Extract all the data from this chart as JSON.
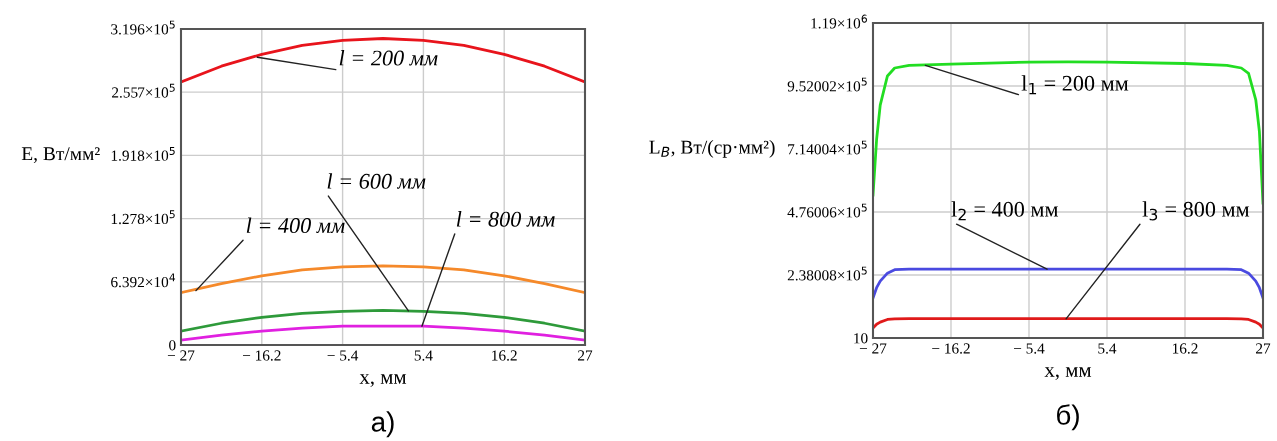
{
  "chart_data": [
    {
      "type": "line",
      "xlabel": "x, мм",
      "ylabel": "E, Вт/мм²",
      "grid": true,
      "x": [
        -27,
        -21.6,
        -16.2,
        -10.8,
        -5.4,
        0,
        5.4,
        10.8,
        16.2,
        21.6,
        27
      ],
      "xlim": [
        -27,
        27
      ],
      "xticks": [
        {
          "value": -27,
          "label": "− 27"
        },
        {
          "value": -16.2,
          "label": "− 16.2"
        },
        {
          "value": -5.4,
          "label": "− 5.4"
        },
        5.4,
        16.2,
        27
      ],
      "ylim": [
        0,
        319600
      ],
      "yticks": [
        0,
        {
          "value": 63920,
          "label": "6.392×10$^{4}$"
        },
        {
          "value": 127800,
          "label": "1.278×10$^{5}$"
        },
        {
          "value": 191800,
          "label": "1.918×10$^{5}$"
        },
        {
          "value": 255700,
          "label": "2.557×10$^{5}$"
        },
        {
          "value": 319600,
          "label": "3.196×10$^{5}$"
        }
      ],
      "series": [
        {
          "color": "#e8141c",
          "values": [
            266000,
            282000,
            294000,
            303000,
            308000,
            310000,
            308000,
            303000,
            294000,
            282000,
            266000
          ]
        },
        {
          "color": "#f5892a",
          "values": [
            53000,
            62000,
            70000,
            76000,
            79000,
            80000,
            79000,
            76000,
            70000,
            62000,
            53000
          ]
        },
        {
          "color": "#2e9a3a",
          "values": [
            14000,
            22000,
            28000,
            32000,
            34000,
            35000,
            34000,
            32000,
            28000,
            22000,
            14000
          ]
        },
        {
          "color": "#e020e0",
          "values": [
            5000,
            10000,
            14000,
            17000,
            19000,
            19000,
            19000,
            17000,
            14000,
            10000,
            5000
          ]
        }
      ],
      "annotations": [
        {
          "text": "l = 200 мм",
          "x": -16.8,
          "y": 291000
        },
        {
          "text": "l = 400 мм",
          "x": -25,
          "y": 55000
        },
        {
          "text": "l = 600 мм",
          "x": 3.4,
          "y": 34500
        },
        {
          "text": "l = 800 мм",
          "x": 5.2,
          "y": 19000
        },
        "а)"
      ]
    },
    {
      "type": "line",
      "xlabel": "x, мм",
      "ylabel": "L$_{B}$, Вт/(ср·мм²)",
      "grid": true,
      "x": [
        -27,
        -26.5,
        -26,
        -25,
        -24,
        -22,
        -16.2,
        -5.4,
        0,
        5.4,
        16.2,
        22,
        24,
        25,
        26,
        26.5,
        27
      ],
      "xlim": [
        -27,
        27
      ],
      "xticks": [
        {
          "value": -27,
          "label": "− 27"
        },
        {
          "value": -16.2,
          "label": "− 16.2"
        },
        {
          "value": -5.4,
          "label": "− 5.4"
        },
        5.4,
        16.2,
        27
      ],
      "ylim": [
        10,
        1190000
      ],
      "yticks": [
        10,
        {
          "value": 238008,
          "label": "2.38008×10$^{5}$"
        },
        {
          "value": 476006,
          "label": "4.76006×10$^{5}$"
        },
        {
          "value": 714004,
          "label": "7.14004×10$^{5}$"
        },
        {
          "value": 952002,
          "label": "9.52002×10$^{5}$"
        },
        {
          "value": 1190000,
          "label": "1.19×10$^{6}$"
        }
      ],
      "series": [
        {
          "color": "#22dd22",
          "values": [
            540000,
            750000,
            880000,
            990000,
            1020000,
            1030000,
            1035000,
            1042000,
            1043000,
            1042000,
            1037000,
            1030000,
            1020000,
            1000000,
            900000,
            780000,
            510000
          ]
        },
        {
          "color": "#4a4ae0",
          "values": [
            151000,
            190000,
            215000,
            245000,
            258000,
            260000,
            260000,
            260000,
            260000,
            260000,
            260000,
            260000,
            258000,
            245000,
            215000,
            190000,
            151000
          ]
        },
        {
          "color": "#e01a1a",
          "values": [
            38000,
            52000,
            60000,
            70000,
            72000,
            73000,
            73000,
            73000,
            73000,
            73000,
            73000,
            73000,
            72000,
            70000,
            60000,
            52000,
            38000
          ]
        }
      ],
      "annotations": [
        {
          "text": "l$_{1}$ = 200 мм",
          "x": -19.75,
          "y": 1030000
        },
        {
          "text": "l$_{2}$ = 400 мм",
          "x": -2.9,
          "y": 260000
        },
        {
          "text": "l$_{3}$ = 800 мм",
          "x": -0.27,
          "y": 72500
        },
        "б)"
      ]
    }
  ]
}
